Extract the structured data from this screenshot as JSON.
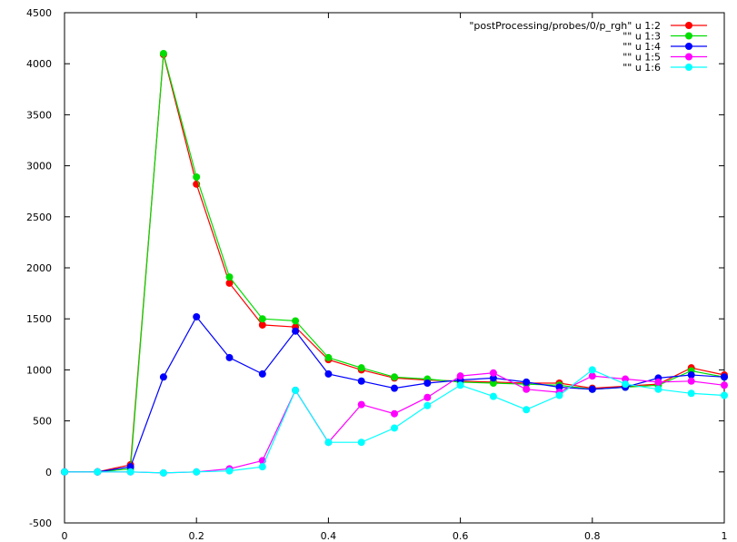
{
  "chart_data": {
    "type": "line",
    "title": "",
    "xlabel": "",
    "ylabel": "",
    "xlim": [
      0,
      1
    ],
    "ylim": [
      -500,
      4500
    ],
    "xticks": [
      0,
      0.2,
      0.4,
      0.6,
      0.8,
      1
    ],
    "xtick_labels": [
      "0",
      "0.2",
      "0.4",
      "0.6",
      "0.8",
      "1"
    ],
    "yticks": [
      -500,
      0,
      500,
      1000,
      1500,
      2000,
      2500,
      3000,
      3500,
      4000,
      4500
    ],
    "ytick_labels": [
      "-500",
      "0",
      "500",
      "1000",
      "1500",
      "2000",
      "2500",
      "3000",
      "3500",
      "4000",
      "4500"
    ],
    "grid": false,
    "legend_position": "top-right",
    "x": [
      0,
      0.05,
      0.1,
      0.15,
      0.2,
      0.25,
      0.3,
      0.35,
      0.4,
      0.45,
      0.5,
      0.55,
      0.6,
      0.65,
      0.7,
      0.75,
      0.8,
      0.85,
      0.9,
      0.95,
      1
    ],
    "series": [
      {
        "name": "\"postProcessing/probes/0/p_rgh\" u 1:2",
        "color": "#ff0000",
        "values": [
          0,
          0,
          70,
          4090,
          2820,
          1850,
          1440,
          1420,
          1100,
          1000,
          920,
          900,
          890,
          880,
          870,
          870,
          820,
          840,
          860,
          1020,
          950
        ]
      },
      {
        "name": "\"\" u 1:3",
        "color": "#00dd00",
        "values": [
          0,
          0,
          30,
          4100,
          2890,
          1910,
          1500,
          1480,
          1120,
          1020,
          930,
          910,
          880,
          870,
          860,
          850,
          810,
          830,
          850,
          990,
          930
        ]
      },
      {
        "name": "\"\" u 1:4",
        "color": "#0000ff",
        "values": [
          0,
          0,
          50,
          930,
          1520,
          1120,
          960,
          1380,
          960,
          890,
          820,
          870,
          900,
          920,
          880,
          830,
          810,
          830,
          920,
          950,
          930
        ]
      },
      {
        "name": "\"\" u 1:5",
        "color": "#ff00ff",
        "values": [
          0,
          0,
          0,
          -10,
          0,
          30,
          110,
          800,
          290,
          660,
          570,
          730,
          940,
          970,
          810,
          780,
          940,
          910,
          880,
          890,
          850
        ]
      },
      {
        "name": "\"\" u 1:6",
        "color": "#00ffff",
        "values": [
          0,
          0,
          0,
          -10,
          0,
          10,
          50,
          800,
          290,
          290,
          430,
          650,
          850,
          740,
          610,
          750,
          1000,
          860,
          810,
          770,
          750
        ]
      }
    ]
  }
}
